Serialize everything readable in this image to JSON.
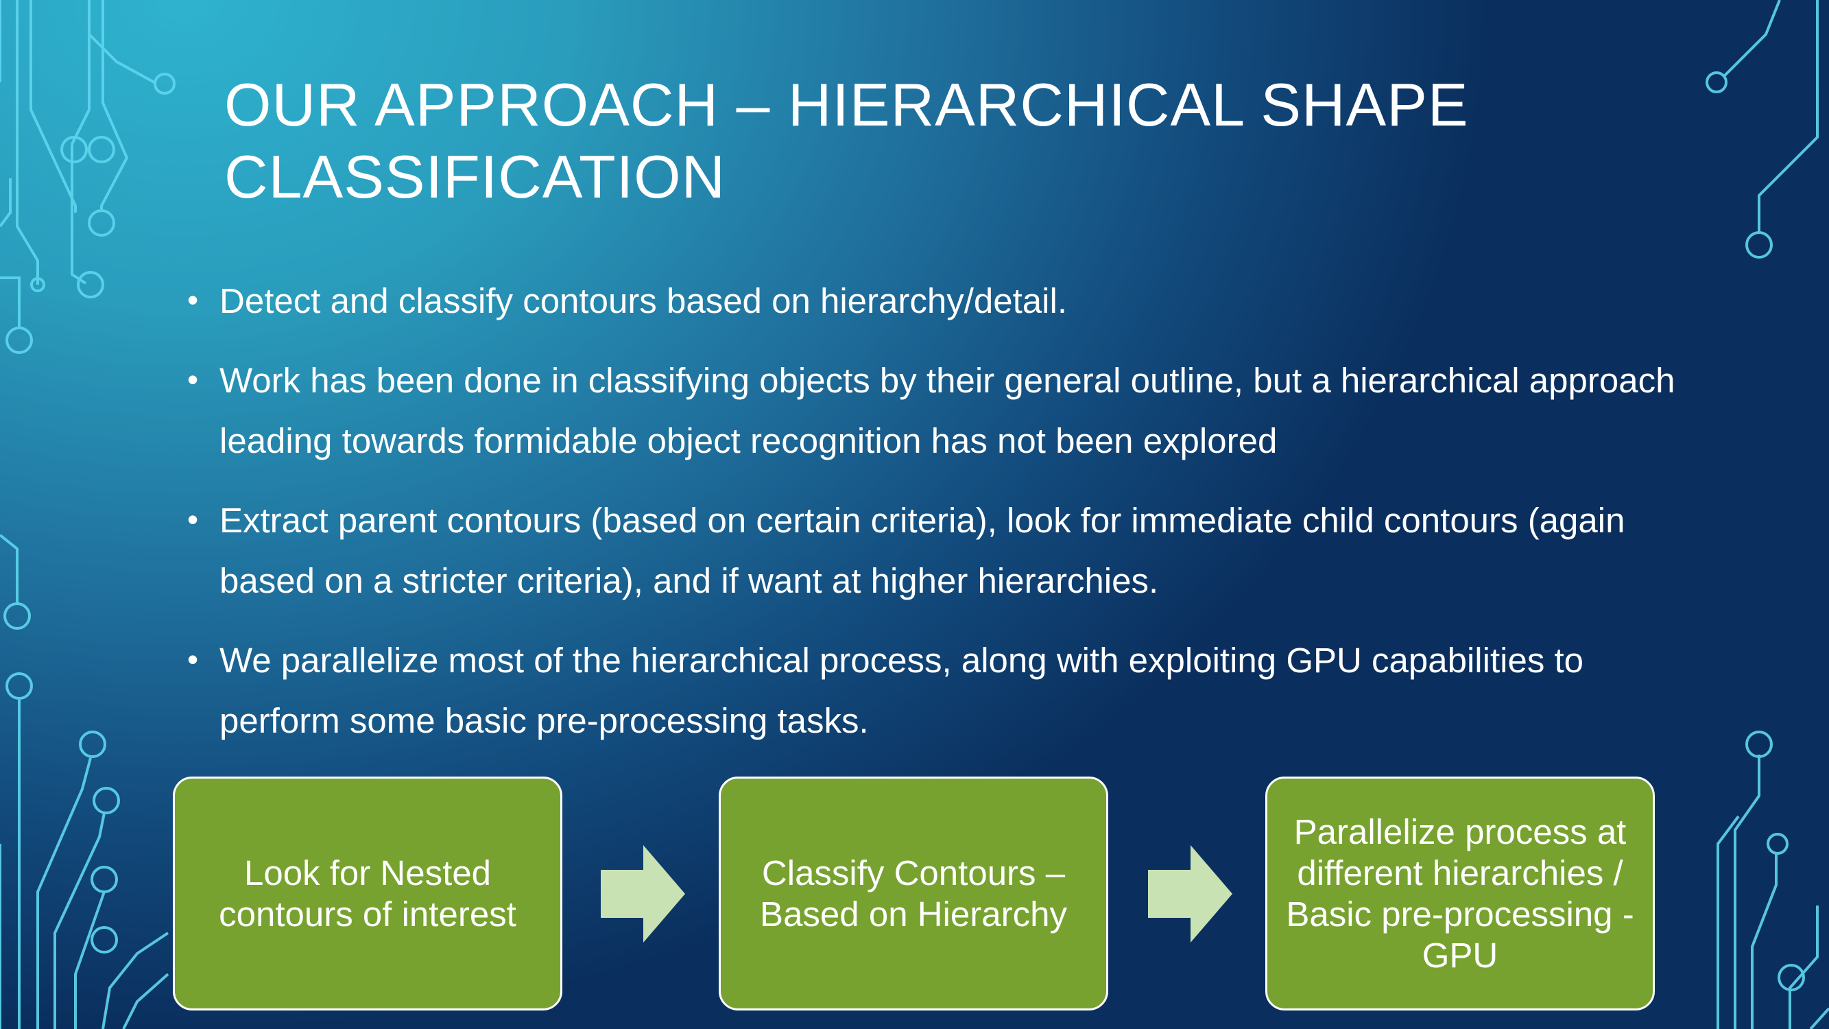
{
  "slide": {
    "title": "Our Approach – Hierarchical Shape Classification",
    "bullets": [
      "Detect and classify contours based on hierarchy/detail.",
      "Work has been done in classifying objects by their general outline, but a hierarchical approach leading towards formidable object recognition has not been explored",
      "Extract parent contours (based on certain criteria), look for immediate child contours (again based on a stricter criteria), and if want at higher hierarchies.",
      "We parallelize most of the hierarchical process, along with exploiting GPU capabilities to perform some basic pre-processing tasks."
    ],
    "process_steps": [
      "Look for Nested contours of interest",
      "Classify Contours – Based on Hierarchy",
      "Parallelize process at different hierarchies / Basic pre-processing -GPU"
    ]
  },
  "colors": {
    "box_fill": "#77a22f",
    "arrow_fill": "#c9e2b3",
    "circuit_line": "#55d3ee",
    "text": "#ffffff"
  },
  "icons": [
    "bullet-dot",
    "right-arrow-icon",
    "circuit-decoration"
  ]
}
